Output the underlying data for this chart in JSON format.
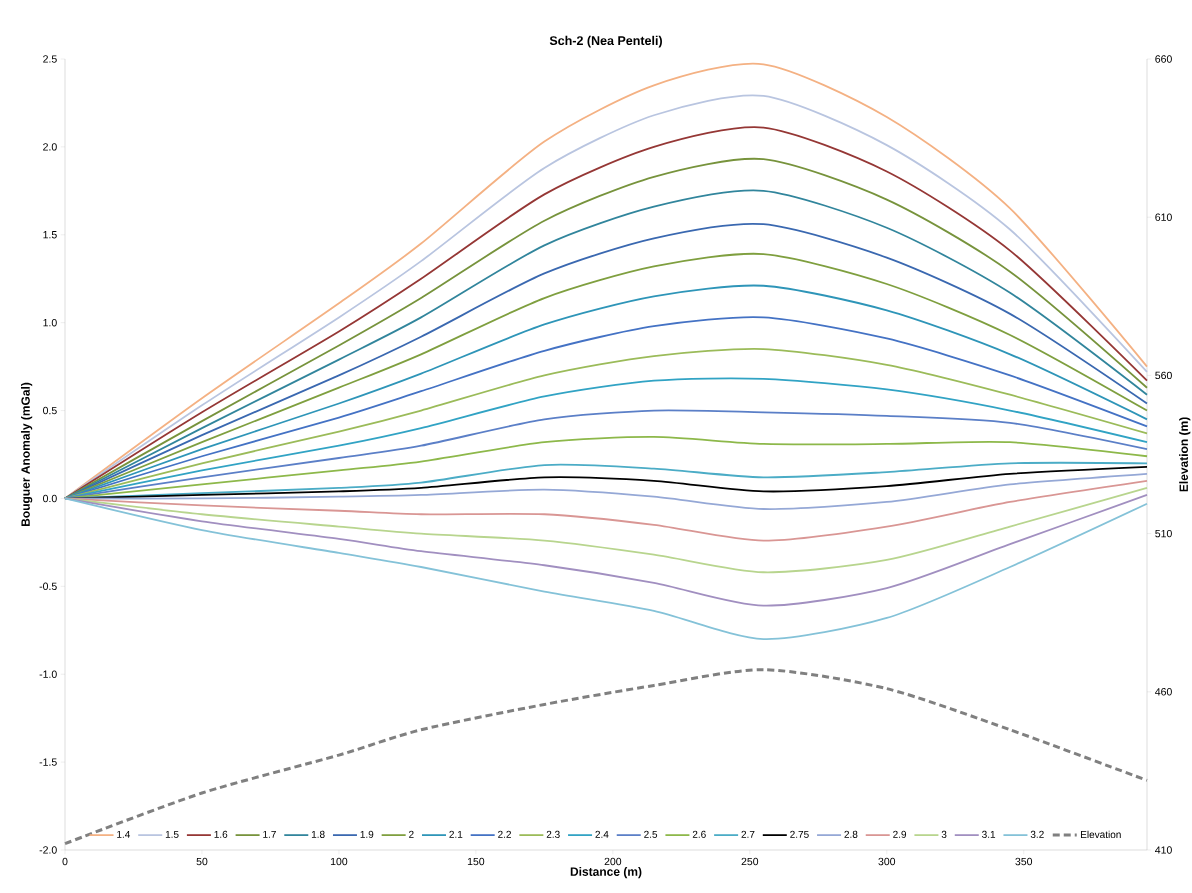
{
  "chart_data": {
    "type": "line",
    "title": "Sch-2 (Nea Penteli)",
    "xlabel": "Distance (m)",
    "ylabel": "Bouguer Anomaly (mGal)",
    "y2label": "Elevation (m)",
    "x": [
      0,
      50,
      100,
      130,
      175,
      215,
      255,
      300,
      345,
      395
    ],
    "xlim": [
      0,
      395
    ],
    "xticks": [
      0,
      50,
      100,
      150,
      200,
      250,
      300,
      350
    ],
    "ylim": [
      -2.0,
      2.5
    ],
    "yticks": [
      {
        "value": -2.0,
        "label": "-2.0"
      },
      {
        "value": -1.5,
        "label": "-1.5"
      },
      {
        "value": -1.0,
        "label": "-1.0"
      },
      {
        "value": -0.5,
        "label": "-0.5"
      },
      {
        "value": 0.0,
        "label": "0.0"
      },
      {
        "value": 0.5,
        "label": "0.5"
      },
      {
        "value": 1.0,
        "label": "1.0"
      },
      {
        "value": 1.5,
        "label": "1.5"
      },
      {
        "value": 2.0,
        "label": "2.0"
      },
      {
        "value": 2.5,
        "label": "2.5"
      }
    ],
    "y2lim": [
      410,
      660
    ],
    "y2ticks": [
      410,
      460,
      510,
      560,
      610,
      660
    ],
    "legend": "bottom",
    "series": [
      {
        "name": "1.4",
        "color": "#f4b183",
        "values": [
          0,
          0.57,
          1.11,
          1.45,
          2.03,
          2.35,
          2.47,
          2.17,
          1.65,
          0.75
        ]
      },
      {
        "name": "1.5",
        "color": "#b9c5e0",
        "values": [
          0,
          0.53,
          1.03,
          1.35,
          1.88,
          2.18,
          2.29,
          2.01,
          1.53,
          0.72
        ]
      },
      {
        "name": "1.6",
        "color": "#953735",
        "values": [
          0,
          0.49,
          0.95,
          1.25,
          1.73,
          2.0,
          2.11,
          1.86,
          1.41,
          0.67
        ]
      },
      {
        "name": "1.7",
        "color": "#77933c",
        "values": [
          0,
          0.44,
          0.87,
          1.14,
          1.58,
          1.83,
          1.93,
          1.7,
          1.29,
          0.63
        ]
      },
      {
        "name": "1.8",
        "color": "#31859c",
        "values": [
          0,
          0.4,
          0.79,
          1.03,
          1.44,
          1.66,
          1.75,
          1.54,
          1.17,
          0.59
        ]
      },
      {
        "name": "1.9",
        "color": "#3a68b0",
        "values": [
          0,
          0.36,
          0.7,
          0.92,
          1.28,
          1.48,
          1.56,
          1.37,
          1.05,
          0.54
        ]
      },
      {
        "name": "2",
        "color": "#7f9f3f",
        "values": [
          0,
          0.32,
          0.63,
          0.82,
          1.14,
          1.32,
          1.39,
          1.22,
          0.93,
          0.5
        ]
      },
      {
        "name": "2.1",
        "color": "#2e95b8",
        "values": [
          0,
          0.28,
          0.54,
          0.71,
          0.99,
          1.15,
          1.21,
          1.07,
          0.82,
          0.45
        ]
      },
      {
        "name": "2.2",
        "color": "#4472c4",
        "values": [
          0,
          0.24,
          0.46,
          0.61,
          0.84,
          0.98,
          1.03,
          0.91,
          0.7,
          0.41
        ]
      },
      {
        "name": "2.3",
        "color": "#9bbb59",
        "values": [
          0,
          0.2,
          0.38,
          0.5,
          0.7,
          0.81,
          0.85,
          0.76,
          0.59,
          0.37
        ]
      },
      {
        "name": "2.4",
        "color": "#31a3c4",
        "values": [
          0,
          0.16,
          0.3,
          0.4,
          0.58,
          0.67,
          0.68,
          0.62,
          0.5,
          0.32
        ]
      },
      {
        "name": "2.5",
        "color": "#5b7fc7",
        "values": [
          0,
          0.12,
          0.23,
          0.3,
          0.45,
          0.5,
          0.49,
          0.47,
          0.43,
          0.28
        ]
      },
      {
        "name": "2.6",
        "color": "#8db84a",
        "values": [
          0,
          0.08,
          0.16,
          0.21,
          0.32,
          0.35,
          0.31,
          0.31,
          0.32,
          0.24
        ]
      },
      {
        "name": "2.7",
        "color": "#4bacc6",
        "values": [
          0,
          0.03,
          0.06,
          0.09,
          0.19,
          0.17,
          0.12,
          0.15,
          0.2,
          0.2
        ]
      },
      {
        "name": "2.75",
        "color": "#000000",
        "values": [
          0,
          0.02,
          0.04,
          0.06,
          0.12,
          0.1,
          0.04,
          0.07,
          0.14,
          0.18
        ]
      },
      {
        "name": "2.8",
        "color": "#95a8d6",
        "values": [
          0,
          0.0,
          0.01,
          0.02,
          0.05,
          0.01,
          -0.06,
          -0.02,
          0.08,
          0.14
        ]
      },
      {
        "name": "2.9",
        "color": "#d99694",
        "values": [
          0,
          -0.04,
          -0.07,
          -0.09,
          -0.09,
          -0.15,
          -0.24,
          -0.16,
          -0.02,
          0.1
        ]
      },
      {
        "name": "3",
        "color": "#b8d58e",
        "values": [
          0,
          -0.09,
          -0.16,
          -0.2,
          -0.24,
          -0.32,
          -0.42,
          -0.35,
          -0.16,
          0.06
        ]
      },
      {
        "name": "3.1",
        "color": "#a18fc0",
        "values": [
          0,
          -0.13,
          -0.23,
          -0.3,
          -0.38,
          -0.48,
          -0.61,
          -0.51,
          -0.26,
          0.02
        ]
      },
      {
        "name": "3.2",
        "color": "#84c2d8",
        "values": [
          0,
          -0.18,
          -0.31,
          -0.39,
          -0.53,
          -0.64,
          -0.8,
          -0.68,
          -0.39,
          -0.03
        ]
      },
      {
        "name": "Elevation",
        "color": "#808080",
        "axis": "y2",
        "line_style": "dashed",
        "values": [
          412,
          428,
          440,
          448,
          456,
          462,
          467,
          461,
          448,
          432
        ]
      }
    ]
  }
}
